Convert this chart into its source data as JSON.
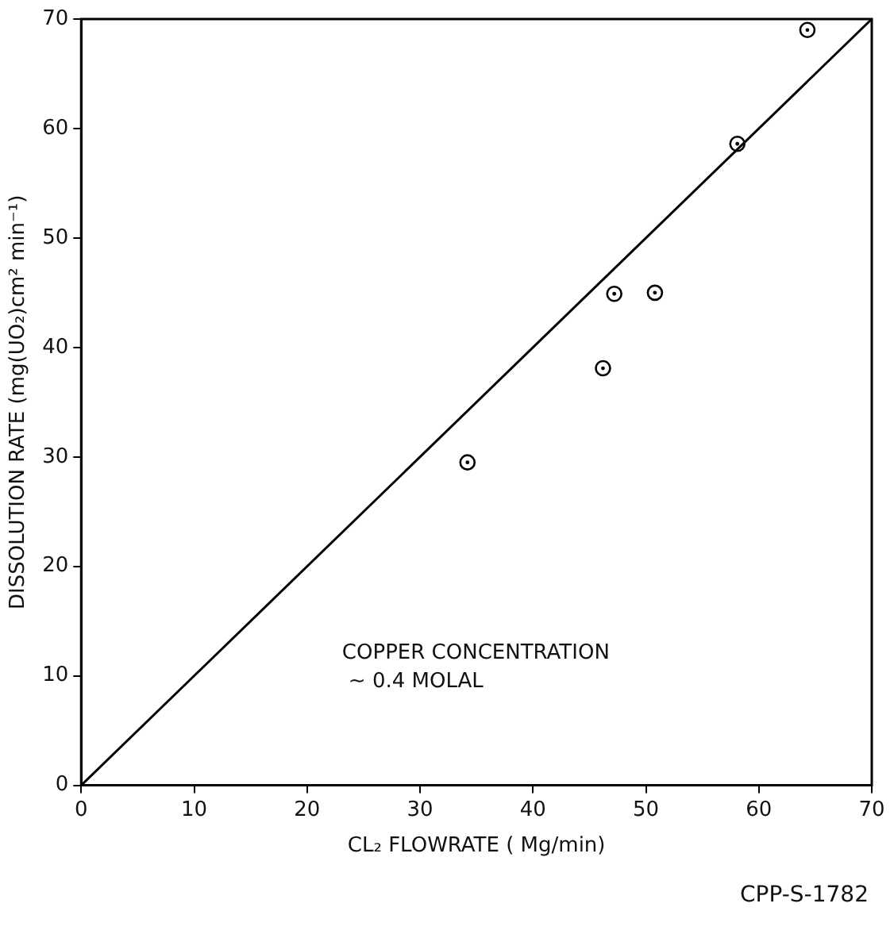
{
  "chart_data": {
    "type": "scatter",
    "xlabel": "CL₂ FLOWRATE ( Mg/min)",
    "ylabel": "DISSOLUTION RATE (mg(UO₂)cm² min⁻¹)",
    "xlim": [
      0,
      70
    ],
    "ylim": [
      0,
      70
    ],
    "xticks": [
      0,
      10,
      20,
      30,
      40,
      50,
      60,
      70
    ],
    "yticks": [
      0,
      10,
      20,
      30,
      40,
      50,
      60,
      70
    ],
    "grid": false,
    "legend": false,
    "marker": "circle",
    "series": [
      {
        "color": "#000000",
        "x": [
          34.2,
          46.2,
          47.2,
          50.8,
          58.1,
          64.3
        ],
        "values": [
          29.5,
          38.1,
          44.9,
          45,
          58.6,
          69
        ]
      },
      {
        "type": "line",
        "color": "#000000",
        "marker": "none",
        "x": [
          0,
          70
        ],
        "values": [
          0,
          70
        ]
      }
    ],
    "annotations": [
      "COPPER CONCENTRATION\n∼ 0.4 MOLAL",
      "CPP-S-1782"
    ]
  }
}
